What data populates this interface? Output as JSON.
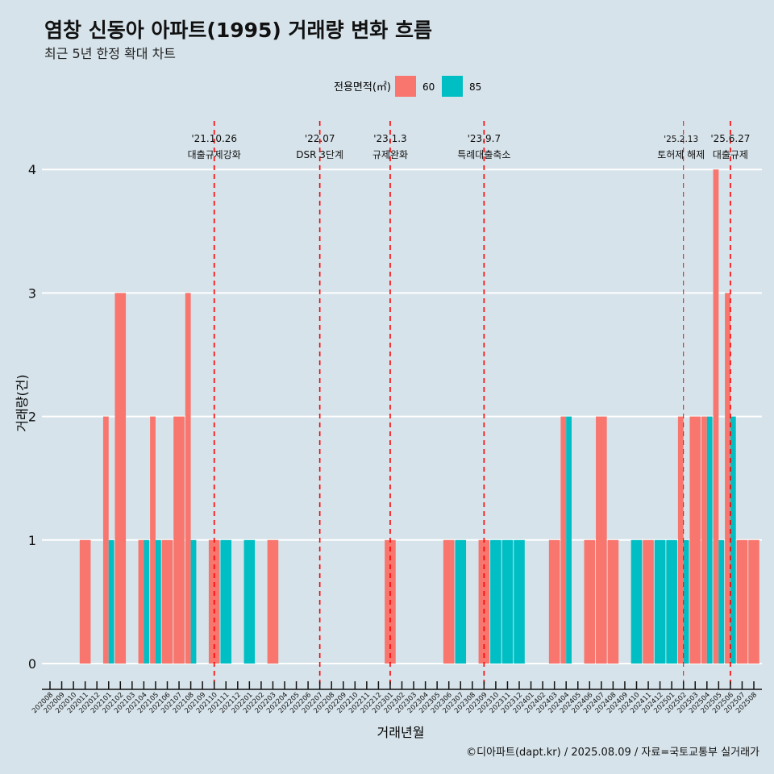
{
  "title": "염창 신동아 아파트(1995) 거래량 변화 흐름",
  "subtitle": "최근 5년 한정 확대 차트",
  "caption": "©디아파트(dapt.kr) / 2025.08.09 / 자료=국토교통부 실거래가",
  "colors": {
    "background": "#d6e3ea",
    "s60": "#f8766d",
    "s85": "#00bfc4",
    "event_line": "#ff0000",
    "grid": "#ffffff"
  },
  "chart_data": {
    "type": "bar",
    "xlabel": "거래년월",
    "ylabel": "거래량(건)",
    "ylim": [
      0,
      4
    ],
    "yticks": [
      0,
      1,
      2,
      3,
      4
    ],
    "legend": {
      "title": "전용면적(㎡)",
      "position": "top",
      "entries": [
        "60",
        "85"
      ]
    },
    "categories": [
      "202008",
      "202009",
      "202010",
      "202011",
      "202012",
      "202101",
      "202102",
      "202103",
      "202104",
      "202105",
      "202106",
      "202107",
      "202108",
      "202109",
      "202110",
      "202111",
      "202112",
      "202201",
      "202202",
      "202203",
      "202204",
      "202205",
      "202206",
      "202207",
      "202208",
      "202209",
      "202210",
      "202211",
      "202212",
      "202301",
      "202302",
      "202303",
      "202304",
      "202305",
      "202306",
      "202307",
      "202308",
      "202309",
      "202310",
      "202311",
      "202312",
      "202401",
      "202402",
      "202403",
      "202404",
      "202405",
      "202406",
      "202407",
      "202408",
      "202409",
      "202410",
      "202411",
      "202412",
      "202501",
      "202502",
      "202503",
      "202504",
      "202505",
      "202506",
      "202507",
      "202508"
    ],
    "series": [
      {
        "name": "60",
        "values": [
          0,
          0,
          0,
          1,
          0,
          2,
          3,
          0,
          1,
          2,
          1,
          2,
          3,
          0,
          1,
          0,
          0,
          0,
          0,
          1,
          0,
          0,
          0,
          0,
          0,
          0,
          0,
          0,
          0,
          1,
          0,
          0,
          0,
          0,
          1,
          0,
          0,
          1,
          0,
          0,
          0,
          0,
          0,
          1,
          2,
          0,
          1,
          2,
          1,
          0,
          0,
          1,
          0,
          0,
          2,
          2,
          2,
          4,
          3,
          1,
          1
        ]
      },
      {
        "name": "85",
        "values": [
          0,
          0,
          0,
          0,
          0,
          1,
          0,
          0,
          1,
          1,
          0,
          0,
          1,
          0,
          0,
          1,
          0,
          1,
          0,
          0,
          0,
          0,
          0,
          0,
          0,
          0,
          0,
          0,
          0,
          0,
          0,
          0,
          0,
          0,
          0,
          1,
          0,
          0,
          1,
          1,
          1,
          0,
          0,
          0,
          2,
          0,
          0,
          0,
          0,
          0,
          1,
          0,
          1,
          1,
          1,
          0,
          2,
          1,
          2,
          0,
          0
        ]
      }
    ],
    "events": [
      {
        "date": "'21.10.26",
        "label": "대출규제강화",
        "pos": 14.0
      },
      {
        "date": "'22.07",
        "label": "DSR 3단계",
        "pos": 23.0
      },
      {
        "date": "'23.1.3",
        "label": "규제완화",
        "pos": 29.0
      },
      {
        "date": "'23.9.7",
        "label": "특례대출축소",
        "pos": 37.0
      },
      {
        "date": "'25.2.13",
        "label": "토허제 해제",
        "pos": 54.0
      },
      {
        "date": "'25.6.27",
        "label": "대출규제",
        "pos": 58.0
      }
    ]
  }
}
